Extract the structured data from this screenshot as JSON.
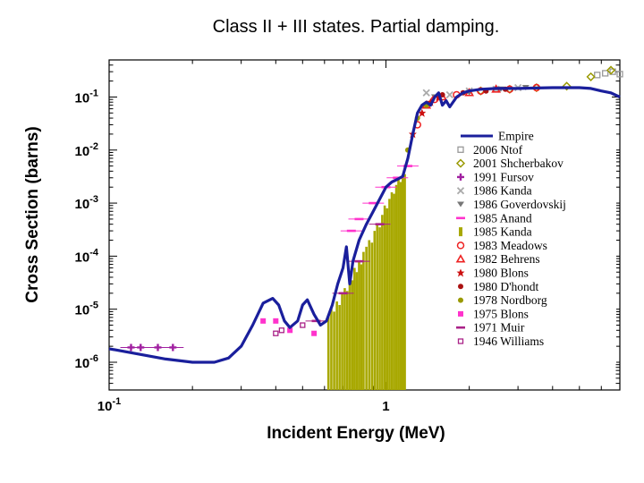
{
  "chart_data": {
    "type": "scatter",
    "title": "Class II + III states. Partial damping.",
    "xlabel": "Incident Energy (MeV)",
    "ylabel": "Cross Section (barns)",
    "xscale": "log",
    "yscale": "log",
    "xlim": [
      0.1,
      7.0
    ],
    "ylim": [
      3e-07,
      0.5
    ],
    "x_ticks": [
      {
        "value": 0.1,
        "base": "10",
        "exp": "-1"
      },
      {
        "value": 1,
        "base": "1",
        "exp": ""
      }
    ],
    "y_ticks": [
      {
        "value": 0.1,
        "base": "10",
        "exp": "-1"
      },
      {
        "value": 0.01,
        "base": "10",
        "exp": "-2"
      },
      {
        "value": 0.001,
        "base": "10",
        "exp": "-3"
      },
      {
        "value": 0.0001,
        "base": "10",
        "exp": "-4"
      },
      {
        "value": 1e-05,
        "base": "10",
        "exp": "-5"
      },
      {
        "value": 1e-06,
        "base": "10",
        "exp": "-6"
      }
    ],
    "legend_position": "right",
    "series": [
      {
        "name": "Empire",
        "kind": "line",
        "color": "#1a1f9c",
        "x": [
          0.1,
          0.13,
          0.16,
          0.2,
          0.24,
          0.27,
          0.3,
          0.33,
          0.36,
          0.39,
          0.41,
          0.43,
          0.45,
          0.48,
          0.5,
          0.52,
          0.55,
          0.58,
          0.61,
          0.64,
          0.67,
          0.7,
          0.72,
          0.74,
          0.76,
          0.8,
          0.85,
          0.9,
          0.95,
          1.0,
          1.05,
          1.1,
          1.15,
          1.2,
          1.25,
          1.3,
          1.35,
          1.4,
          1.45,
          1.5,
          1.55,
          1.6,
          1.65,
          1.7,
          1.8,
          1.9,
          2.0,
          2.2,
          2.5,
          3.0,
          3.5,
          4.0,
          4.5,
          5.0,
          5.5,
          6.0,
          6.5,
          7.0
        ],
        "y": [
          1.8e-06,
          1.4e-06,
          1.15e-06,
          1e-06,
          1e-06,
          1.2e-06,
          2e-06,
          5e-06,
          1.3e-05,
          1.6e-05,
          1.2e-05,
          6e-06,
          4.5e-06,
          6e-06,
          1.2e-05,
          1.5e-05,
          8e-06,
          5e-06,
          6e-06,
          1.2e-05,
          3e-05,
          6e-05,
          0.00015,
          3e-05,
          8e-05,
          0.0002,
          0.0004,
          0.0007,
          0.0012,
          0.002,
          0.0025,
          0.0028,
          0.0032,
          0.007,
          0.02,
          0.05,
          0.07,
          0.08,
          0.07,
          0.1,
          0.12,
          0.07,
          0.085,
          0.065,
          0.1,
          0.12,
          0.13,
          0.14,
          0.145,
          0.145,
          0.148,
          0.15,
          0.15,
          0.15,
          0.145,
          0.13,
          0.12,
          0.1
        ]
      },
      {
        "name": "2006 Ntof",
        "kind": "marker",
        "color": "#999999",
        "marker": "square-open",
        "x": [
          5.8,
          6.2,
          6.6,
          7.0
        ],
        "y": [
          0.26,
          0.28,
          0.3,
          0.27
        ]
      },
      {
        "name": "2001 Shcherbakov",
        "kind": "marker",
        "color": "#999900",
        "marker": "diamond-open",
        "x": [
          2.2,
          2.8,
          3.5,
          4.5,
          5.5,
          6.5
        ],
        "y": [
          0.13,
          0.14,
          0.15,
          0.16,
          0.24,
          0.32
        ]
      },
      {
        "name": "1991 Fursov",
        "kind": "marker",
        "color": "#a020a0",
        "marker": "cross",
        "x": [
          0.12,
          0.13,
          0.15,
          0.17
        ],
        "y": [
          1.9e-06,
          1.9e-06,
          1.9e-06,
          1.9e-06
        ]
      },
      {
        "name": "1986 Kanda",
        "kind": "marker",
        "color": "#aaaaaa",
        "marker": "x",
        "x": [
          1.4,
          1.7,
          2.0,
          2.5,
          3.0
        ],
        "y": [
          0.12,
          0.11,
          0.13,
          0.14,
          0.15
        ]
      },
      {
        "name": "1986 Goverdovskij",
        "kind": "marker",
        "color": "#777777",
        "marker": "triangle-down",
        "x": [
          1.5,
          2.0,
          2.6,
          3.2
        ],
        "y": [
          0.1,
          0.12,
          0.14,
          0.15
        ]
      },
      {
        "name": "1985 Anand",
        "kind": "marker",
        "color": "#ff33cc",
        "marker": "dash",
        "x": [
          0.75,
          0.8,
          0.9,
          1.0,
          1.1,
          1.2
        ],
        "y": [
          0.0003,
          0.0005,
          0.001,
          0.002,
          0.003,
          0.005
        ]
      },
      {
        "name": "1985 Kanda",
        "kind": "band",
        "color": "#a8a800",
        "x": [
          0.62,
          0.635,
          0.65,
          0.665,
          0.68,
          0.695,
          0.71,
          0.725,
          0.74,
          0.755,
          0.77,
          0.785,
          0.8,
          0.815,
          0.83,
          0.85,
          0.87,
          0.89,
          0.91,
          0.93,
          0.95,
          0.97,
          0.99,
          1.01,
          1.03,
          1.05,
          1.07,
          1.09,
          1.11,
          1.13,
          1.15,
          1.17
        ],
        "y": [
          8e-06,
          1e-05,
          9e-06,
          1.4e-05,
          1.2e-05,
          2e-05,
          2.5e-05,
          2.2e-05,
          4.5e-05,
          3.5e-05,
          6e-05,
          5e-05,
          8e-05,
          7e-05,
          0.00012,
          0.00015,
          0.0002,
          0.00018,
          0.0003,
          0.0004,
          0.00035,
          0.0006,
          0.0009,
          0.0008,
          0.0012,
          0.0016,
          0.0015,
          0.0022,
          0.0028,
          0.0025,
          0.003,
          0.0035
        ]
      },
      {
        "name": "1983 Meadows",
        "kind": "marker",
        "color": "#ee2222",
        "marker": "circle-open",
        "x": [
          1.3,
          1.5,
          1.8,
          2.2,
          2.8,
          3.5
        ],
        "y": [
          0.03,
          0.09,
          0.11,
          0.13,
          0.14,
          0.15
        ]
      },
      {
        "name": "1982 Behrens",
        "kind": "marker",
        "color": "#ee2222",
        "marker": "triangle-open",
        "x": [
          1.4,
          1.6,
          2.0,
          2.5
        ],
        "y": [
          0.07,
          0.1,
          0.12,
          0.14
        ]
      },
      {
        "name": "1980 Blons",
        "kind": "marker",
        "color": "#cc1111",
        "marker": "star",
        "x": [
          1.25,
          1.35,
          1.45,
          1.55
        ],
        "y": [
          0.02,
          0.05,
          0.08,
          0.1
        ]
      },
      {
        "name": "1980 D'hondt",
        "kind": "marker",
        "color": "#aa1111",
        "marker": "circle",
        "x": [
          1.6,
          1.9,
          2.3,
          2.7
        ],
        "y": [
          0.11,
          0.12,
          0.13,
          0.14
        ]
      },
      {
        "name": "1978 Nordborg",
        "kind": "marker",
        "color": "#999900",
        "marker": "circle",
        "x": [
          1.2,
          1.3,
          1.4
        ],
        "y": [
          0.01,
          0.04,
          0.07
        ]
      },
      {
        "name": "1975 Blons",
        "kind": "marker",
        "color": "#ff33cc",
        "marker": "square",
        "x": [
          0.36,
          0.4,
          0.45,
          0.55
        ],
        "y": [
          6e-06,
          6e-06,
          4e-06,
          3.5e-06
        ]
      },
      {
        "name": "1971 Muir",
        "kind": "marker",
        "color": "#aa2288",
        "marker": "dash",
        "x": [
          0.56,
          0.7,
          0.8,
          0.95
        ],
        "y": [
          6e-06,
          2e-05,
          8e-05,
          0.0004
        ]
      },
      {
        "name": "1946 Williams",
        "kind": "marker",
        "color": "#aa2288",
        "marker": "square-small",
        "x": [
          0.4,
          0.42,
          0.5
        ],
        "y": [
          3.5e-06,
          4e-06,
          5e-06
        ]
      }
    ]
  }
}
